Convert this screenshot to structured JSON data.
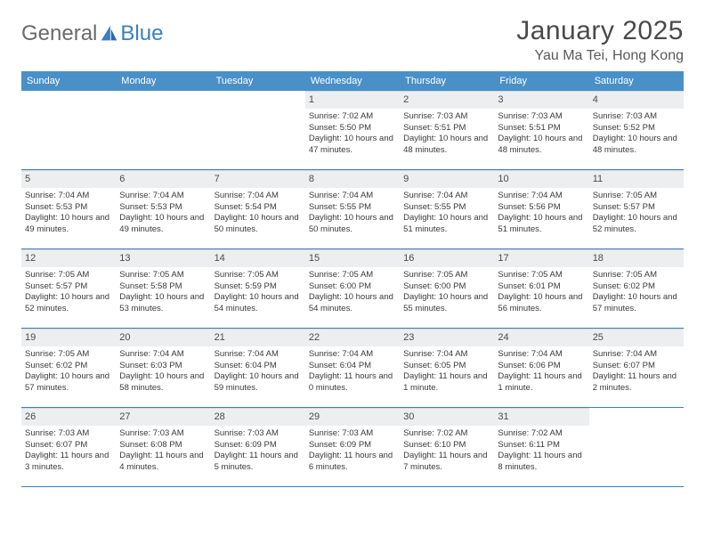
{
  "logo": {
    "text_gray": "General",
    "text_blue": "Blue"
  },
  "title": "January 2025",
  "location": "Yau Ma Tei, Hong Kong",
  "colors": {
    "header_blue": "#4a90c8",
    "rule_blue": "#3a7fbf",
    "daynum_bg": "#eceef0",
    "text": "#3a3a3a",
    "logo_gray": "#6a6a6a",
    "logo_blue": "#3a7fbf"
  },
  "typography": {
    "title_fontsize": 30,
    "location_fontsize": 16,
    "dow_fontsize": 11,
    "daynum_fontsize": 11,
    "body_fontsize": 9.5
  },
  "days_of_week": [
    "Sunday",
    "Monday",
    "Tuesday",
    "Wednesday",
    "Thursday",
    "Friday",
    "Saturday"
  ],
  "weeks": [
    [
      {
        "n": "",
        "lines": []
      },
      {
        "n": "",
        "lines": []
      },
      {
        "n": "",
        "lines": []
      },
      {
        "n": "1",
        "lines": [
          "Sunrise: 7:02 AM",
          "Sunset: 5:50 PM",
          "Daylight: 10 hours and 47 minutes."
        ]
      },
      {
        "n": "2",
        "lines": [
          "Sunrise: 7:03 AM",
          "Sunset: 5:51 PM",
          "Daylight: 10 hours and 48 minutes."
        ]
      },
      {
        "n": "3",
        "lines": [
          "Sunrise: 7:03 AM",
          "Sunset: 5:51 PM",
          "Daylight: 10 hours and 48 minutes."
        ]
      },
      {
        "n": "4",
        "lines": [
          "Sunrise: 7:03 AM",
          "Sunset: 5:52 PM",
          "Daylight: 10 hours and 48 minutes."
        ]
      }
    ],
    [
      {
        "n": "5",
        "lines": [
          "Sunrise: 7:04 AM",
          "Sunset: 5:53 PM",
          "Daylight: 10 hours and 49 minutes."
        ]
      },
      {
        "n": "6",
        "lines": [
          "Sunrise: 7:04 AM",
          "Sunset: 5:53 PM",
          "Daylight: 10 hours and 49 minutes."
        ]
      },
      {
        "n": "7",
        "lines": [
          "Sunrise: 7:04 AM",
          "Sunset: 5:54 PM",
          "Daylight: 10 hours and 50 minutes."
        ]
      },
      {
        "n": "8",
        "lines": [
          "Sunrise: 7:04 AM",
          "Sunset: 5:55 PM",
          "Daylight: 10 hours and 50 minutes."
        ]
      },
      {
        "n": "9",
        "lines": [
          "Sunrise: 7:04 AM",
          "Sunset: 5:55 PM",
          "Daylight: 10 hours and 51 minutes."
        ]
      },
      {
        "n": "10",
        "lines": [
          "Sunrise: 7:04 AM",
          "Sunset: 5:56 PM",
          "Daylight: 10 hours and 51 minutes."
        ]
      },
      {
        "n": "11",
        "lines": [
          "Sunrise: 7:05 AM",
          "Sunset: 5:57 PM",
          "Daylight: 10 hours and 52 minutes."
        ]
      }
    ],
    [
      {
        "n": "12",
        "lines": [
          "Sunrise: 7:05 AM",
          "Sunset: 5:57 PM",
          "Daylight: 10 hours and 52 minutes."
        ]
      },
      {
        "n": "13",
        "lines": [
          "Sunrise: 7:05 AM",
          "Sunset: 5:58 PM",
          "Daylight: 10 hours and 53 minutes."
        ]
      },
      {
        "n": "14",
        "lines": [
          "Sunrise: 7:05 AM",
          "Sunset: 5:59 PM",
          "Daylight: 10 hours and 54 minutes."
        ]
      },
      {
        "n": "15",
        "lines": [
          "Sunrise: 7:05 AM",
          "Sunset: 6:00 PM",
          "Daylight: 10 hours and 54 minutes."
        ]
      },
      {
        "n": "16",
        "lines": [
          "Sunrise: 7:05 AM",
          "Sunset: 6:00 PM",
          "Daylight: 10 hours and 55 minutes."
        ]
      },
      {
        "n": "17",
        "lines": [
          "Sunrise: 7:05 AM",
          "Sunset: 6:01 PM",
          "Daylight: 10 hours and 56 minutes."
        ]
      },
      {
        "n": "18",
        "lines": [
          "Sunrise: 7:05 AM",
          "Sunset: 6:02 PM",
          "Daylight: 10 hours and 57 minutes."
        ]
      }
    ],
    [
      {
        "n": "19",
        "lines": [
          "Sunrise: 7:05 AM",
          "Sunset: 6:02 PM",
          "Daylight: 10 hours and 57 minutes."
        ]
      },
      {
        "n": "20",
        "lines": [
          "Sunrise: 7:04 AM",
          "Sunset: 6:03 PM",
          "Daylight: 10 hours and 58 minutes."
        ]
      },
      {
        "n": "21",
        "lines": [
          "Sunrise: 7:04 AM",
          "Sunset: 6:04 PM",
          "Daylight: 10 hours and 59 minutes."
        ]
      },
      {
        "n": "22",
        "lines": [
          "Sunrise: 7:04 AM",
          "Sunset: 6:04 PM",
          "Daylight: 11 hours and 0 minutes."
        ]
      },
      {
        "n": "23",
        "lines": [
          "Sunrise: 7:04 AM",
          "Sunset: 6:05 PM",
          "Daylight: 11 hours and 1 minute."
        ]
      },
      {
        "n": "24",
        "lines": [
          "Sunrise: 7:04 AM",
          "Sunset: 6:06 PM",
          "Daylight: 11 hours and 1 minute."
        ]
      },
      {
        "n": "25",
        "lines": [
          "Sunrise: 7:04 AM",
          "Sunset: 6:07 PM",
          "Daylight: 11 hours and 2 minutes."
        ]
      }
    ],
    [
      {
        "n": "26",
        "lines": [
          "Sunrise: 7:03 AM",
          "Sunset: 6:07 PM",
          "Daylight: 11 hours and 3 minutes."
        ]
      },
      {
        "n": "27",
        "lines": [
          "Sunrise: 7:03 AM",
          "Sunset: 6:08 PM",
          "Daylight: 11 hours and 4 minutes."
        ]
      },
      {
        "n": "28",
        "lines": [
          "Sunrise: 7:03 AM",
          "Sunset: 6:09 PM",
          "Daylight: 11 hours and 5 minutes."
        ]
      },
      {
        "n": "29",
        "lines": [
          "Sunrise: 7:03 AM",
          "Sunset: 6:09 PM",
          "Daylight: 11 hours and 6 minutes."
        ]
      },
      {
        "n": "30",
        "lines": [
          "Sunrise: 7:02 AM",
          "Sunset: 6:10 PM",
          "Daylight: 11 hours and 7 minutes."
        ]
      },
      {
        "n": "31",
        "lines": [
          "Sunrise: 7:02 AM",
          "Sunset: 6:11 PM",
          "Daylight: 11 hours and 8 minutes."
        ]
      },
      {
        "n": "",
        "lines": []
      }
    ]
  ]
}
